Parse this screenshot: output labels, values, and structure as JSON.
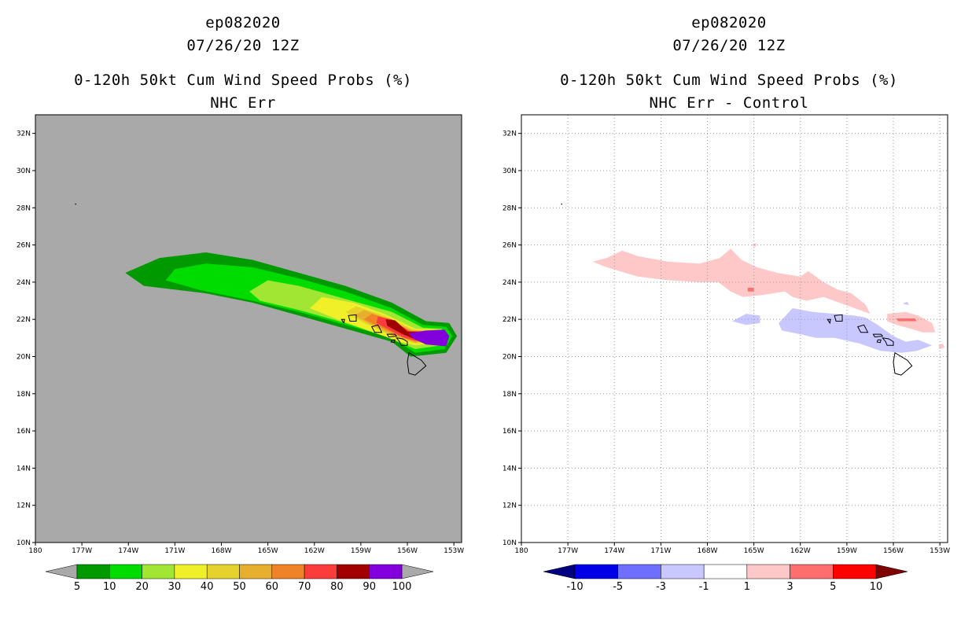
{
  "chart_data": [
    {
      "type": "heatmap",
      "title": [
        "ep082020",
        "07/26/20 12Z",
        "0-120h 50kt Cum Wind Speed Probs (%)",
        "NHC Err"
      ],
      "xlabel": "",
      "ylabel": "",
      "xlim": [
        -180,
        -152.5
      ],
      "ylim": [
        10,
        33
      ],
      "x_ticks": [
        "180",
        "177W",
        "174W",
        "171W",
        "168W",
        "165W",
        "162W",
        "159W",
        "156W",
        "153W"
      ],
      "y_ticks": [
        "10N",
        "12N",
        "14N",
        "16N",
        "18N",
        "20N",
        "22N",
        "24N",
        "26N",
        "28N",
        "30N",
        "32N"
      ],
      "grid": false,
      "background": "#a9a9a9",
      "colorbar": {
        "labels": [
          "5",
          "10",
          "20",
          "30",
          "40",
          "50",
          "60",
          "70",
          "80",
          "90",
          "100"
        ],
        "colors": [
          "#009900",
          "#00dc00",
          "#a0e632",
          "#f0f028",
          "#e6d22d",
          "#e6af2d",
          "#f08228",
          "#fa3c3c",
          "#a00000",
          "#8200dc"
        ],
        "under": "#a9a9a9",
        "over": "#a9a9a9"
      },
      "swath": [
        {
          "level": 5,
          "color": "#009900",
          "points": [
            [
              -157,
              22.9
            ],
            [
              -160,
              23.8
            ],
            [
              -163,
              24.5
            ],
            [
              -166,
              25.2
            ],
            [
              -169,
              25.6
            ],
            [
              -172,
              25.3
            ],
            [
              -174.2,
              24.5
            ],
            [
              -173,
              23.8
            ],
            [
              -169,
              23.4
            ],
            [
              -166,
              22.9
            ],
            [
              -163,
              22.2
            ],
            [
              -160,
              21.5
            ],
            [
              -157,
              20.8
            ],
            [
              -155.8,
              20.0
            ],
            [
              -153.5,
              20.2
            ],
            [
              -152.8,
              21.1
            ],
            [
              -153.3,
              21.8
            ],
            [
              -154.8,
              21.9
            ]
          ]
        },
        {
          "level": 10,
          "color": "#00dc00",
          "points": [
            [
              -157,
              22.6
            ],
            [
              -160,
              23.5
            ],
            [
              -163,
              24.2
            ],
            [
              -166,
              24.8
            ],
            [
              -169,
              25.0
            ],
            [
              -171,
              24.7
            ],
            [
              -171.6,
              24.1
            ],
            [
              -169.5,
              23.6
            ],
            [
              -166,
              23.0
            ],
            [
              -163,
              22.4
            ],
            [
              -160,
              21.7
            ],
            [
              -157,
              21.0
            ],
            [
              -155.5,
              20.2
            ],
            [
              -153.6,
              20.4
            ],
            [
              -153.1,
              21.1
            ],
            [
              -153.5,
              21.6
            ],
            [
              -155,
              21.7
            ]
          ]
        },
        {
          "level": 20,
          "color": "#a0e632",
          "points": [
            [
              -157,
              22.4
            ],
            [
              -160,
              23.1
            ],
            [
              -163,
              23.8
            ],
            [
              -165,
              24.1
            ],
            [
              -166.2,
              23.5
            ],
            [
              -165.5,
              23.0
            ],
            [
              -163,
              22.5
            ],
            [
              -160,
              21.8
            ],
            [
              -157.5,
              21.1
            ],
            [
              -155.5,
              20.4
            ],
            [
              -153.8,
              20.6
            ],
            [
              -153.3,
              21.1
            ],
            [
              -153.8,
              21.5
            ],
            [
              -155,
              21.55
            ]
          ]
        },
        {
          "level": 30,
          "color": "#f0f028",
          "points": [
            [
              -157.5,
              22.3
            ],
            [
              -159.5,
              22.9
            ],
            [
              -161.5,
              23.2
            ],
            [
              -162.3,
              22.6
            ],
            [
              -160.5,
              22.0
            ],
            [
              -158.5,
              21.4
            ],
            [
              -156.5,
              20.8
            ],
            [
              -155.5,
              20.6
            ],
            [
              -154,
              20.75
            ],
            [
              -153.5,
              21.1
            ],
            [
              -154,
              21.45
            ],
            [
              -155.5,
              21.5
            ]
          ]
        },
        {
          "level": 40,
          "color": "#e6d22d",
          "points": [
            [
              -157.5,
              22.2
            ],
            [
              -159.3,
              22.7
            ],
            [
              -160,
              22.4
            ],
            [
              -159,
              21.9
            ],
            [
              -157,
              21.1
            ],
            [
              -155.5,
              20.7
            ],
            [
              -154.2,
              20.8
            ],
            [
              -153.7,
              21.1
            ],
            [
              -154.2,
              21.4
            ],
            [
              -155.6,
              21.45
            ]
          ]
        },
        {
          "level": 50,
          "color": "#e6af2d",
          "points": [
            [
              -157.5,
              22.1
            ],
            [
              -158.8,
              22.5
            ],
            [
              -159.4,
              22.2
            ],
            [
              -158.3,
              21.7
            ],
            [
              -156.8,
              21.1
            ],
            [
              -155.5,
              20.75
            ],
            [
              -154.4,
              20.85
            ],
            [
              -153.8,
              21.1
            ],
            [
              -154.3,
              21.38
            ],
            [
              -155.7,
              21.4
            ]
          ]
        },
        {
          "level": 60,
          "color": "#f08228",
          "points": [
            [
              -157.3,
              22.05
            ],
            [
              -158.3,
              22.3
            ],
            [
              -158.8,
              22.0
            ],
            [
              -157.8,
              21.6
            ],
            [
              -156.5,
              21.1
            ],
            [
              -155.5,
              20.8
            ],
            [
              -154.5,
              20.9
            ],
            [
              -153.9,
              21.1
            ],
            [
              -154.4,
              21.36
            ],
            [
              -155.8,
              21.38
            ]
          ]
        },
        {
          "level": 70,
          "color": "#fa3c3c",
          "points": [
            [
              -157,
              22.0
            ],
            [
              -157.9,
              22.15
            ],
            [
              -158,
              21.8
            ],
            [
              -157.2,
              21.45
            ],
            [
              -156.2,
              21.0
            ],
            [
              -155.4,
              20.85
            ],
            [
              -154.6,
              20.95
            ],
            [
              -154.0,
              21.1
            ],
            [
              -154.5,
              21.34
            ],
            [
              -155.9,
              21.36
            ]
          ]
        },
        {
          "level": 80,
          "color": "#a00000",
          "points": [
            [
              -156.8,
              21.95
            ],
            [
              -157.4,
              22.0
            ],
            [
              -157.3,
              21.65
            ],
            [
              -156.3,
              21.2
            ],
            [
              -155.4,
              20.9
            ],
            [
              -154.7,
              21.0
            ],
            [
              -154.1,
              21.1
            ],
            [
              -154.6,
              21.32
            ],
            [
              -156,
              21.34
            ]
          ]
        },
        {
          "level": 90,
          "color": "#8200dc",
          "points": [
            [
              -155.9,
              21.25
            ],
            [
              -155.6,
              20.95
            ],
            [
              -154.8,
              20.65
            ],
            [
              -153.5,
              20.55
            ],
            [
              -153.3,
              21.1
            ],
            [
              -153.6,
              21.45
            ],
            [
              -154.8,
              21.4
            ]
          ]
        }
      ]
    },
    {
      "type": "heatmap",
      "title": [
        "ep082020",
        "07/26/20 12Z",
        "0-120h 50kt Cum Wind Speed Probs (%)",
        "NHC Err - Control"
      ],
      "xlabel": "",
      "ylabel": "",
      "xlim": [
        -180,
        -152.5
      ],
      "ylim": [
        10,
        33
      ],
      "x_ticks": [
        "180",
        "177W",
        "174W",
        "171W",
        "168W",
        "165W",
        "162W",
        "159W",
        "156W",
        "153W"
      ],
      "y_ticks": [
        "10N",
        "12N",
        "14N",
        "16N",
        "18N",
        "20N",
        "22N",
        "24N",
        "26N",
        "28N",
        "30N",
        "32N"
      ],
      "grid": true,
      "background": "#ffffff",
      "colorbar": {
        "labels": [
          "-10",
          "-5",
          "-3",
          "-1",
          "1",
          "3",
          "5",
          "10"
        ],
        "colors": [
          "#0000e6",
          "#6e6eff",
          "#c8c8ff",
          "#ffffff",
          "#ffc8c8",
          "#ff6e6e",
          "#ff0000"
        ],
        "under": "#000080",
        "over": "#800000"
      },
      "regions": [
        {
          "level": 1,
          "color": "#ffc8c8",
          "points": [
            [
              -175.4,
              25.1
            ],
            [
              -174.5,
              25.3
            ],
            [
              -173.5,
              25.7
            ],
            [
              -172.5,
              25.4
            ],
            [
              -170.5,
              25.1
            ],
            [
              -168.5,
              25.0
            ],
            [
              -167.2,
              25.3
            ],
            [
              -166.5,
              25.8
            ],
            [
              -165.8,
              25.2
            ],
            [
              -164.8,
              24.8
            ],
            [
              -163.5,
              24.5
            ],
            [
              -162,
              24.3
            ],
            [
              -161.5,
              24.6
            ],
            [
              -160.5,
              24.0
            ],
            [
              -159.6,
              23.6
            ],
            [
              -158.7,
              23.4
            ],
            [
              -157.8,
              22.8
            ],
            [
              -157.5,
              22.3
            ],
            [
              -158.5,
              22.6
            ],
            [
              -159.5,
              22.9
            ],
            [
              -160.5,
              23.2
            ],
            [
              -161.6,
              23.0
            ],
            [
              -162.5,
              23.2
            ],
            [
              -163,
              23.5
            ],
            [
              -164.5,
              23.3
            ],
            [
              -165.7,
              23.2
            ],
            [
              -166.5,
              23.5
            ],
            [
              -167.3,
              24.0
            ],
            [
              -168.5,
              24.0
            ],
            [
              -170.5,
              24.1
            ],
            [
              -172.5,
              24.3
            ],
            [
              -174.5,
              24.8
            ]
          ]
        },
        {
          "level": 1,
          "color": "#ffc8c8",
          "points": [
            [
              -156.4,
              22.3
            ],
            [
              -155.2,
              22.4
            ],
            [
              -154.4,
              22.2
            ],
            [
              -153.5,
              21.8
            ],
            [
              -153.3,
              21.3
            ],
            [
              -154.1,
              21.3
            ],
            [
              -154.9,
              21.5
            ],
            [
              -155.8,
              21.7
            ],
            [
              -156.4,
              21.9
            ]
          ]
        },
        {
          "level": 1,
          "color": "#ffc8c8",
          "points": [
            [
              -153.0,
              20.4
            ],
            [
              -152.7,
              20.5
            ],
            [
              -152.8,
              20.7
            ],
            [
              -153.1,
              20.6
            ]
          ]
        },
        {
          "level": 1,
          "color": "#ffc8c8",
          "points": [
            [
              -165.2,
              26.0
            ],
            [
              -164.8,
              26.1
            ],
            [
              -164.9,
              25.9
            ]
          ]
        },
        {
          "level": 3,
          "color": "#ff6e6e",
          "points": [
            [
              -165.4,
              23.7
            ],
            [
              -165.0,
              23.7
            ],
            [
              -165.0,
              23.5
            ],
            [
              -165.4,
              23.5
            ]
          ]
        },
        {
          "level": 3,
          "color": "#ff6e6e",
          "points": [
            [
              -155.8,
              22.05
            ],
            [
              -154.6,
              22.05
            ],
            [
              -154.5,
              21.9
            ],
            [
              -155.7,
              21.9
            ]
          ]
        },
        {
          "level": -1,
          "color": "#c8c8ff",
          "points": [
            [
              -163.4,
              21.8
            ],
            [
              -162.5,
              22.6
            ],
            [
              -161.2,
              22.4
            ],
            [
              -159.8,
              22.3
            ],
            [
              -158.5,
              22.2
            ],
            [
              -157.8,
              22.1
            ],
            [
              -157.0,
              21.7
            ],
            [
              -156.0,
              21.1
            ],
            [
              -155.2,
              20.8
            ],
            [
              -154.4,
              20.9
            ],
            [
              -153.5,
              20.6
            ],
            [
              -154.5,
              20.3
            ],
            [
              -155.5,
              20.2
            ],
            [
              -156.8,
              20.3
            ],
            [
              -158.2,
              20.7
            ],
            [
              -159.8,
              21.0
            ],
            [
              -161.0,
              21.0
            ],
            [
              -162.0,
              21.2
            ],
            [
              -163.2,
              21.4
            ]
          ]
        },
        {
          "level": -1,
          "color": "#c8c8ff",
          "points": [
            [
              -166.4,
              21.9
            ],
            [
              -165.5,
              22.3
            ],
            [
              -164.6,
              22.2
            ],
            [
              -164.6,
              21.8
            ],
            [
              -165.5,
              21.7
            ]
          ]
        },
        {
          "level": -1,
          "color": "#c8c8ff",
          "points": [
            [
              -155.4,
              22.85
            ],
            [
              -155.1,
              22.95
            ],
            [
              -155.0,
              22.75
            ]
          ]
        }
      ]
    }
  ]
}
